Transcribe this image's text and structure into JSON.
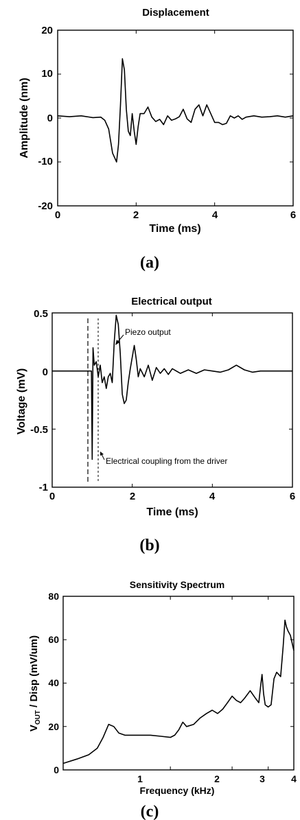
{
  "chart_data": [
    {
      "type": "line",
      "title": "Displacement",
      "xlabel": "Time (ms)",
      "ylabel": "Amplitude (nm)",
      "xlim": [
        0,
        6
      ],
      "ylim": [
        -20,
        20
      ],
      "xticks": [
        "0",
        "2",
        "4",
        "6"
      ],
      "yticks": [
        "-20",
        "-10",
        "0",
        "10",
        "20"
      ],
      "caption": "(a)",
      "series": [
        {
          "x": [
            0,
            0.3,
            0.6,
            0.9,
            1.1,
            1.2,
            1.3,
            1.4,
            1.5,
            1.55,
            1.6,
            1.65,
            1.7,
            1.75,
            1.8,
            1.85,
            1.9,
            1.95,
            2.0,
            2.05,
            2.1,
            2.2,
            2.3,
            2.4,
            2.5,
            2.6,
            2.7,
            2.8,
            2.9,
            3.0,
            3.1,
            3.2,
            3.3,
            3.4,
            3.5,
            3.6,
            3.7,
            3.8,
            3.9,
            4.0,
            4.1,
            4.2,
            4.3,
            4.4,
            4.5,
            4.6,
            4.7,
            4.8,
            5.0,
            5.2,
            5.4,
            5.6,
            5.8,
            6.0
          ],
          "y": [
            0.5,
            0.3,
            0.5,
            0.1,
            0.2,
            -0.5,
            -2.5,
            -8,
            -10,
            -6,
            3,
            13.5,
            11,
            2,
            -3,
            -4,
            1,
            -3,
            -6,
            -2,
            1,
            1,
            2.5,
            0.2,
            -0.8,
            -0.3,
            -1.5,
            0.5,
            -0.5,
            -0.2,
            0.3,
            2,
            -0.2,
            -1,
            2,
            3,
            0.5,
            3,
            1,
            -1,
            -1,
            -1.5,
            -1.2,
            0.5,
            0,
            0.5,
            -0.3,
            0.2,
            0.5,
            0.2,
            0.3,
            0.5,
            0.2,
            0.5
          ]
        }
      ]
    },
    {
      "type": "line",
      "title": "Electrical output",
      "xlabel": "Time (ms)",
      "ylabel": "Voltage (mV)",
      "xlim": [
        0,
        6
      ],
      "ylim": [
        -1,
        0.5
      ],
      "xticks": [
        "0",
        "2",
        "4",
        "6"
      ],
      "yticks": [
        "-1",
        "-0.5",
        "0",
        "0.5"
      ],
      "caption": "(b)",
      "annotations": [
        "Piezo output",
        "Electrical coupling from the driver"
      ],
      "series": [
        {
          "x": [
            0,
            0.3,
            0.6,
            0.9,
            0.98,
            1.0,
            1.02,
            1.05,
            1.1,
            1.15,
            1.2,
            1.25,
            1.3,
            1.35,
            1.4,
            1.45,
            1.5,
            1.55,
            1.6,
            1.65,
            1.7,
            1.75,
            1.8,
            1.85,
            1.9,
            1.95,
            2.0,
            2.05,
            2.1,
            2.15,
            2.2,
            2.3,
            2.4,
            2.5,
            2.6,
            2.7,
            2.8,
            2.9,
            3.0,
            3.2,
            3.4,
            3.6,
            3.8,
            4.0,
            4.2,
            4.4,
            4.6,
            4.8,
            5.0,
            5.2,
            5.4,
            5.6,
            5.8,
            6.0
          ],
          "y": [
            0,
            0,
            0,
            0,
            0,
            -0.76,
            0.2,
            0.05,
            0.08,
            -0.05,
            0.05,
            -0.1,
            -0.05,
            -0.15,
            -0.05,
            -0.02,
            -0.1,
            0.25,
            0.48,
            0.4,
            0.15,
            -0.2,
            -0.28,
            -0.25,
            -0.1,
            0.02,
            0.12,
            0.22,
            0.1,
            -0.05,
            0.02,
            -0.05,
            0.05,
            -0.08,
            0.03,
            -0.02,
            0.02,
            -0.03,
            0.02,
            -0.02,
            0.01,
            -0.02,
            0.01,
            0.0,
            -0.01,
            0.01,
            0.05,
            0.01,
            -0.01,
            0.0,
            0.0,
            0.0,
            0.0,
            0.0
          ]
        }
      ]
    },
    {
      "type": "line",
      "title": "Sensitivity Spectrum",
      "xlabel": "Frequency (kHz)",
      "ylabel_main": "V",
      "ylabel_sub": "OUT",
      "ylabel_rest": " / Disp (mV/um)",
      "xscale": "log",
      "xlim": [
        0.3,
        4
      ],
      "ylim": [
        0,
        80
      ],
      "xticks": [
        "1",
        "2",
        "3",
        "4"
      ],
      "yticks": [
        "0",
        "20",
        "40",
        "60",
        "80"
      ],
      "caption": "(c)",
      "series": [
        {
          "x": [
            0.3,
            0.35,
            0.4,
            0.44,
            0.47,
            0.5,
            0.53,
            0.56,
            0.6,
            0.7,
            0.8,
            0.9,
            1.0,
            1.05,
            1.1,
            1.15,
            1.2,
            1.3,
            1.4,
            1.5,
            1.6,
            1.7,
            1.8,
            1.9,
            2.0,
            2.1,
            2.2,
            2.3,
            2.45,
            2.6,
            2.7,
            2.75,
            2.8,
            2.85,
            2.9,
            3.0,
            3.1,
            3.2,
            3.3,
            3.45,
            3.55,
            3.62,
            3.68,
            3.75,
            3.85,
            4.0
          ],
          "y": [
            3,
            5,
            7,
            10,
            15,
            21,
            20,
            17,
            16,
            16,
            16,
            15.5,
            15,
            16,
            18.5,
            22,
            20,
            21,
            24,
            26,
            27.5,
            26,
            28,
            31,
            34,
            32,
            31,
            33,
            36.5,
            33,
            31,
            38,
            44,
            35,
            30,
            29,
            30,
            42,
            45,
            43,
            57,
            69,
            66,
            64,
            62,
            55
          ]
        }
      ]
    }
  ]
}
